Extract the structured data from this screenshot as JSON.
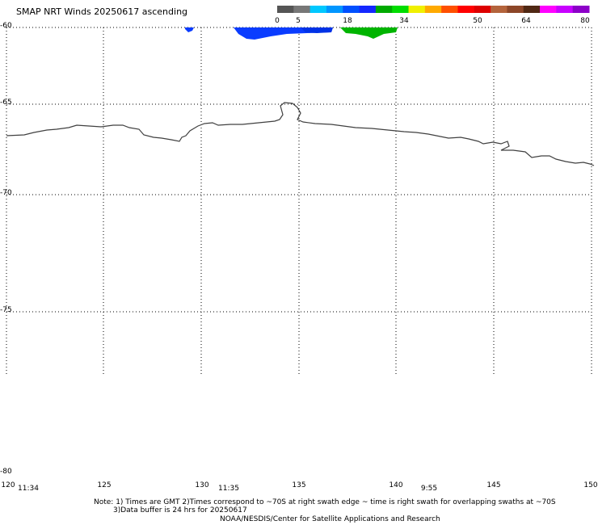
{
  "title": "SMAP NRT Winds 20250617 ascending",
  "colorbar": {
    "ticks": [
      "0",
      "5",
      "18",
      "34",
      "50",
      "64",
      "80"
    ],
    "segments": [
      "#555555",
      "#777777",
      "#00c8ff",
      "#0096ff",
      "#0050ff",
      "#1428ff",
      "#00aa00",
      "#00dd00",
      "#f0f000",
      "#ffaa00",
      "#ff5000",
      "#ff0000",
      "#dd0000",
      "#b4643c",
      "#8c4628",
      "#502814",
      "#ff00ff",
      "#c800ff",
      "#8c00c8"
    ]
  },
  "map": {
    "lat_labels": [
      "-60",
      "-65",
      "-70",
      "-75",
      "-80"
    ],
    "lon_labels": [
      "120",
      "125",
      "130",
      "135",
      "140",
      "145",
      "150"
    ],
    "lat_values": [
      -60,
      -65,
      -70,
      -75,
      -80
    ],
    "lon_values": [
      120,
      125,
      130,
      135,
      140,
      145,
      150
    ]
  },
  "swath_times": [
    "11:34",
    "11:35",
    "9:55"
  ],
  "notes": {
    "line1": "Note: 1) Times are GMT 2)Times correspond to ~70S at right swath edge ~ time is right swath for overlapping swaths at ~70S",
    "line2": "3)Data buffer is 24 hrs for 20250617",
    "line3": "NOAA/NESDIS/Center for Satellite Applications and Research"
  },
  "colors": {
    "wind_blue": "#0a3cff",
    "wind_dark_blue": "#0032e6",
    "wind_green": "#00b400",
    "coastline": "#404040",
    "grid": "#000000"
  }
}
